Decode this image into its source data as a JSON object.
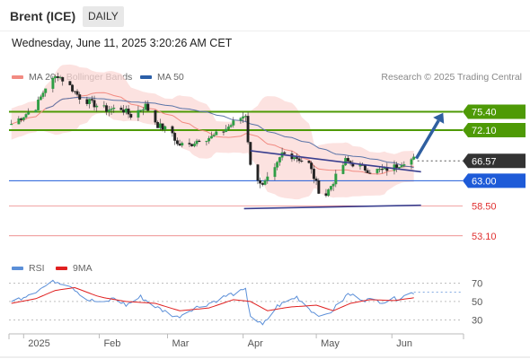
{
  "header": {
    "title": "Brent (ICE)",
    "period": "DAILY"
  },
  "datetime": "Wednesday, June 11, 2025 3:20:26 AM CET",
  "legend": {
    "ma20_label": "MA 20 + Bollinger Bands",
    "ma20_color": "#f28b82",
    "ma50_label": "MA 50",
    "ma50_color": "#2b5fa8",
    "rsi_label": "RSI",
    "rsi_color": "#5b8fd8",
    "ma9_label": "9MA",
    "ma9_color": "#e02020"
  },
  "credit": "Research © 2025 Trading Central",
  "chart_data": [
    {
      "type": "candlestick",
      "x_axis": {
        "tick_labels": [
          "2025",
          "Feb",
          "Mar",
          "Apr",
          "May",
          "Jun"
        ],
        "range": [
          "2024-12-26",
          "2025-06-30"
        ]
      },
      "y_axis": {
        "range": [
          50,
          80
        ]
      },
      "levels": [
        {
          "value": 75.4,
          "label": "75.40",
          "color": "#4e9a06",
          "style": "resistance"
        },
        {
          "value": 72.1,
          "label": "72.10",
          "color": "#4e9a06",
          "style": "resistance"
        },
        {
          "value": 66.57,
          "label": "66.57",
          "color": "#333333",
          "style": "last-price"
        },
        {
          "value": 63.0,
          "label": "63.00",
          "color": "#1e5bd8",
          "style": "pivot"
        },
        {
          "value": 58.5,
          "label": "58.50",
          "color": "#e03030",
          "style": "support"
        },
        {
          "value": 53.1,
          "label": "53.10",
          "color": "#e03030",
          "style": "support"
        }
      ],
      "close_path": [
        [
          "2024-12-27",
          73.2
        ],
        [
          "2025-01-02",
          75.0
        ],
        [
          "2025-01-06",
          76.2
        ],
        [
          "2025-01-10",
          79.8
        ],
        [
          "2025-01-15",
          82.0
        ],
        [
          "2025-01-20",
          80.0
        ],
        [
          "2025-01-24",
          78.0
        ],
        [
          "2025-01-30",
          76.7
        ],
        [
          "2025-02-04",
          75.8
        ],
        [
          "2025-02-10",
          76.0
        ],
        [
          "2025-02-14",
          74.7
        ],
        [
          "2025-02-20",
          76.5
        ],
        [
          "2025-02-25",
          73.0
        ],
        [
          "2025-03-03",
          71.6
        ],
        [
          "2025-03-05",
          69.5
        ],
        [
          "2025-03-10",
          69.4
        ],
        [
          "2025-03-14",
          70.5
        ],
        [
          "2025-03-19",
          70.8
        ],
        [
          "2025-03-24",
          72.0
        ],
        [
          "2025-03-28",
          73.4
        ],
        [
          "2025-04-02",
          74.9
        ],
        [
          "2025-04-04",
          65.6
        ],
        [
          "2025-04-08",
          62.8
        ],
        [
          "2025-04-09",
          62.0
        ],
        [
          "2025-04-14",
          64.9
        ],
        [
          "2025-04-17",
          67.9
        ],
        [
          "2025-04-22",
          67.4
        ],
        [
          "2025-04-28",
          66.0
        ],
        [
          "2025-05-02",
          61.3
        ],
        [
          "2025-05-05",
          60.5
        ],
        [
          "2025-05-08",
          62.9
        ],
        [
          "2025-05-13",
          66.6
        ],
        [
          "2025-05-19",
          65.5
        ],
        [
          "2025-05-23",
          64.8
        ],
        [
          "2025-05-28",
          64.9
        ],
        [
          "2025-06-02",
          65.5
        ],
        [
          "2025-06-06",
          66.5
        ],
        [
          "2025-06-10",
          66.9
        ]
      ],
      "triangle": {
        "upper": [
          [
            "2025-04-04",
            68.4
          ],
          [
            "2025-06-10",
            64.6
          ]
        ],
        "lower": [
          [
            "2025-04-08",
            58.0
          ],
          [
            "2025-06-10",
            58.6
          ]
        ]
      },
      "forecast_arrow": {
        "from": [
          "2025-06-11",
          67.0
        ],
        "to": [
          "2025-06-22",
          75.2
        ]
      }
    },
    {
      "type": "line",
      "series": [
        {
          "name": "RSI"
        },
        {
          "name": "9MA"
        }
      ],
      "y_axis": {
        "range": [
          15,
          80
        ],
        "tick_labels": [
          "70",
          "50",
          "30"
        ],
        "dashed_levels": [
          70,
          50,
          30
        ]
      },
      "rsi": [
        [
          "2024-12-27",
          49
        ],
        [
          "2025-01-03",
          58
        ],
        [
          "2025-01-08",
          64
        ],
        [
          "2025-01-14",
          72
        ],
        [
          "2025-01-20",
          68
        ],
        [
          "2025-01-27",
          52
        ],
        [
          "2025-02-03",
          48
        ],
        [
          "2025-02-07",
          54
        ],
        [
          "2025-02-12",
          46
        ],
        [
          "2025-02-18",
          55
        ],
        [
          "2025-02-25",
          43
        ],
        [
          "2025-03-05",
          33
        ],
        [
          "2025-03-11",
          42
        ],
        [
          "2025-03-18",
          48
        ],
        [
          "2025-03-26",
          57
        ],
        [
          "2025-04-02",
          62
        ],
        [
          "2025-04-04",
          35
        ],
        [
          "2025-04-09",
          24
        ],
        [
          "2025-04-15",
          45
        ],
        [
          "2025-04-23",
          55
        ],
        [
          "2025-04-30",
          38
        ],
        [
          "2025-05-05",
          34
        ],
        [
          "2025-05-09",
          44
        ],
        [
          "2025-05-14",
          58
        ],
        [
          "2025-05-21",
          52
        ],
        [
          "2025-05-29",
          50
        ],
        [
          "2025-06-04",
          54
        ],
        [
          "2025-06-10",
          60
        ]
      ],
      "ma9": [
        [
          "2024-12-27",
          48
        ],
        [
          "2025-01-06",
          53
        ],
        [
          "2025-01-14",
          62
        ],
        [
          "2025-01-22",
          65
        ],
        [
          "2025-02-01",
          55
        ],
        [
          "2025-02-12",
          50
        ],
        [
          "2025-02-24",
          48
        ],
        [
          "2025-03-06",
          40
        ],
        [
          "2025-03-18",
          43
        ],
        [
          "2025-03-28",
          52
        ],
        [
          "2025-04-04",
          50
        ],
        [
          "2025-04-11",
          40
        ],
        [
          "2025-04-20",
          44
        ],
        [
          "2025-05-01",
          46
        ],
        [
          "2025-05-08",
          40
        ],
        [
          "2025-05-15",
          48
        ],
        [
          "2025-05-23",
          52
        ],
        [
          "2025-06-02",
          51
        ],
        [
          "2025-06-10",
          54
        ]
      ]
    }
  ]
}
